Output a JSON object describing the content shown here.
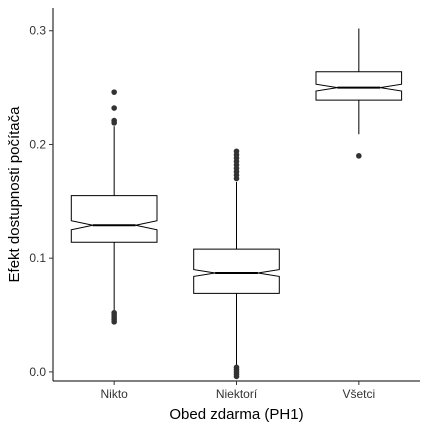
{
  "chart_data": {
    "type": "boxplot",
    "notched": true,
    "xlabel": "Obed zdarma (PH1)",
    "ylabel": "Efekt dostupnosti počítača",
    "categories": [
      "Nikto",
      "Niektorí",
      "Všetci"
    ],
    "ylim": [
      -0.008,
      0.32
    ],
    "yticks": [
      0.0,
      0.1,
      0.2,
      0.3
    ],
    "ytick_labels": [
      "0.0",
      "0.1",
      "0.2",
      "0.3"
    ],
    "grid": false,
    "legend": "none",
    "boxes": [
      {
        "category": "Nikto",
        "whisker_low": 0.053,
        "q1": 0.114,
        "median": 0.129,
        "q3": 0.155,
        "whisker_high": 0.216,
        "notch_low": 0.125,
        "notch_high": 0.133,
        "outliers": [
          0.044,
          0.046,
          0.048,
          0.05,
          0.052,
          0.219,
          0.221,
          0.232,
          0.246
        ]
      },
      {
        "category": "Niektorí",
        "whisker_low": 0.006,
        "q1": 0.069,
        "median": 0.087,
        "q3": 0.108,
        "whisker_high": 0.167,
        "notch_low": 0.084,
        "notch_high": 0.09,
        "outliers": [
          -0.004,
          -0.002,
          0.0,
          0.002,
          0.004,
          0.17,
          0.173,
          0.176,
          0.179,
          0.182,
          0.185,
          0.188,
          0.191,
          0.194
        ]
      },
      {
        "category": "Všetci",
        "whisker_low": 0.209,
        "q1": 0.239,
        "median": 0.25,
        "q3": 0.264,
        "whisker_high": 0.302,
        "notch_low": 0.247,
        "notch_high": 0.253,
        "outliers": [
          0.19
        ]
      }
    ],
    "colors": {
      "box_fill": "#ffffff",
      "stroke": "#000000",
      "outlier": "#333333"
    }
  }
}
